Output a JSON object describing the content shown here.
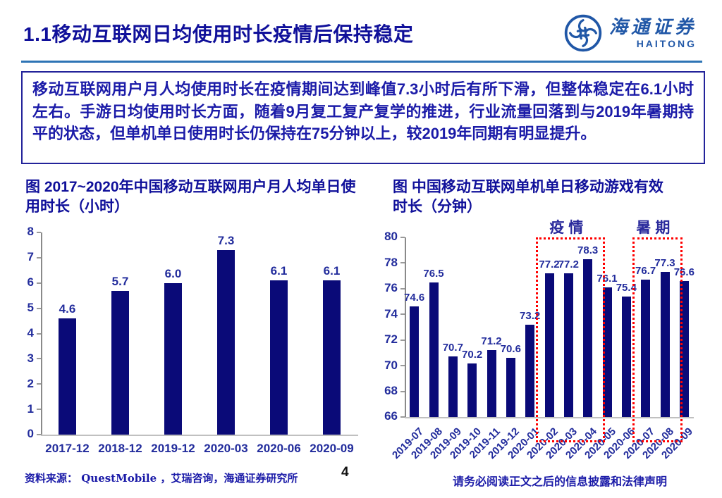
{
  "header": {
    "title": "1.1移动互联网日均使用时长疫情后保持稳定"
  },
  "logo": {
    "name_zh": "海通证券",
    "name_en": "HAITONG",
    "emblem_icon": "haitong-swirl-emblem",
    "brand_color": "#2057A7"
  },
  "summary": {
    "text": "移动互联网用户月人均使用时长在疫情期间达到峰值7.3小时后有所下滑，但整体稳定在6.1小时左右。手游日均使用时长方面，随着9月复工复产复学的推进，行业流量回落到与2019年暑期持平的状态，但单机单日使用时长仍保持在75分钟以上，较2019年同期有明显提升。"
  },
  "chart_data": [
    {
      "type": "bar",
      "title": "图 2017~2020年中国移动互联网用户月人均单日使用时长（小时）",
      "categories": [
        "2017-12",
        "2018-12",
        "2019-12",
        "2020-03",
        "2020-06",
        "2020-09"
      ],
      "values": [
        4.6,
        5.7,
        6.0,
        7.3,
        6.1,
        6.1
      ],
      "ylim": [
        0,
        8
      ],
      "yticks": [
        0,
        1,
        2,
        3,
        4,
        5,
        6,
        7,
        8
      ],
      "grid": false,
      "legend": null,
      "bar_color": "#0A0A78"
    },
    {
      "type": "bar",
      "title": "图 中国移动互联网单机单日移动游戏有效时长（分钟）",
      "categories": [
        "2019-07",
        "2019-08",
        "2019-09",
        "2019-10",
        "2019-11",
        "2019-12",
        "2020-01",
        "2020-02",
        "2020-03",
        "2020-04",
        "2020-05",
        "2020-06",
        "2020-07",
        "2020-08",
        "2020-09"
      ],
      "values": [
        74.6,
        76.5,
        70.7,
        70.2,
        71.2,
        70.6,
        73.2,
        77.2,
        77.2,
        78.3,
        76.1,
        75.4,
        76.7,
        77.3,
        76.6
      ],
      "ylim": [
        66,
        80
      ],
      "yticks": [
        66,
        68,
        70,
        72,
        74,
        76,
        78,
        80
      ],
      "grid": false,
      "legend": null,
      "bar_color": "#0A0A78",
      "annotations": [
        {
          "label": "疫情",
          "from": "2020-02",
          "to": "2020-04"
        },
        {
          "label": "暑期",
          "from": "2020-07",
          "to": "2020-08"
        }
      ]
    }
  ],
  "footer": {
    "source": "资料来源： QuestMobile ，艾瑞咨询，海通证券研究所",
    "page_number": "4",
    "disclaimer": "请务必阅读正文之后的信息披露和法律声明"
  },
  "colors": {
    "title_navy": "#10109A",
    "body_navy": "#1B1BA8",
    "chart_label_navy": "#222C9C",
    "bar_navy": "#0A0A78",
    "rule_blue": "#2E74B5",
    "annotation_red": "#FF0000",
    "logo_blue": "#2057A7"
  }
}
